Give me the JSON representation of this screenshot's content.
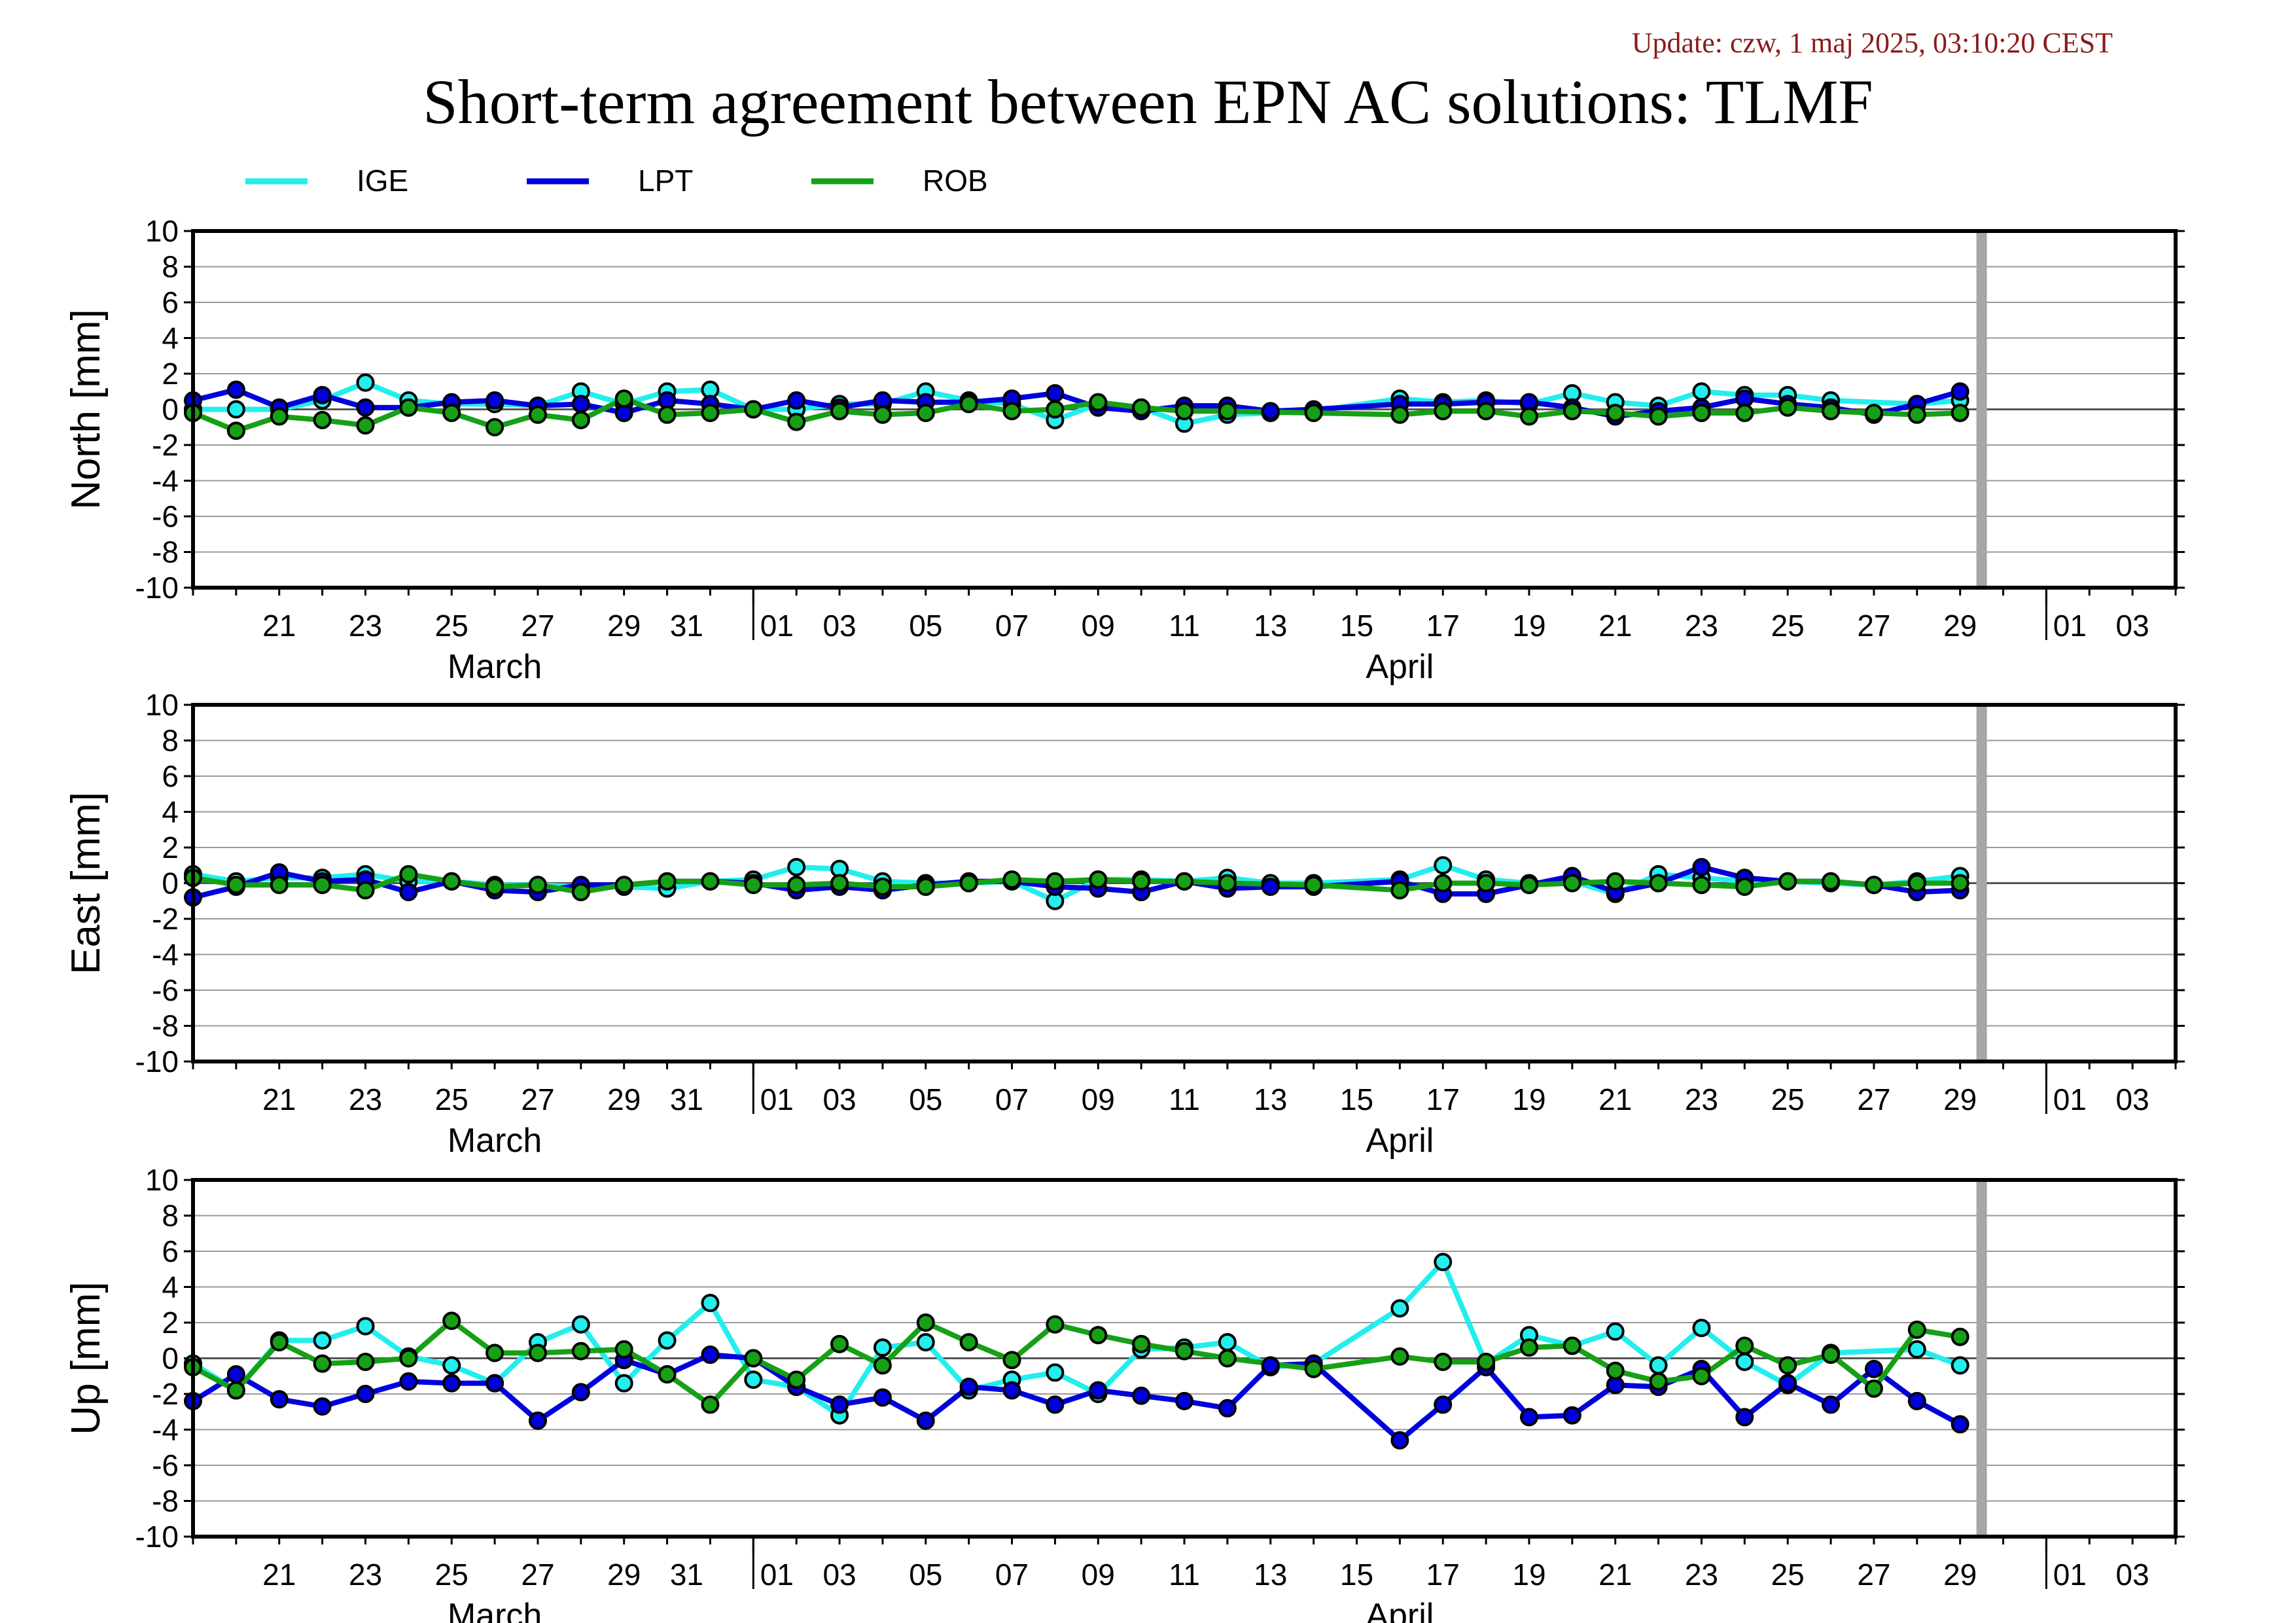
{
  "update": "Update: czw, 1 maj 2025, 03:10:20 CEST",
  "title": "Short-term agreement between EPN AC solutions: TLMF",
  "legend": [
    {
      "label": "IGE",
      "color": "#22eeee"
    },
    {
      "label": "LPT",
      "color": "#0000dd"
    },
    {
      "label": "ROB",
      "color": "#16a016"
    }
  ],
  "chart_data": {
    "type": "line",
    "x_axis": {
      "start_day": "2025-03-19",
      "end_day": "2025-05-04",
      "tick_labels": [
        "21",
        "23",
        "25",
        "27",
        "29",
        "31",
        "01",
        "03",
        "05",
        "07",
        "09",
        "11",
        "13",
        "15",
        "17",
        "19",
        "21",
        "23",
        "25",
        "27",
        "29",
        "01",
        "03"
      ],
      "month_labels": [
        "March",
        "April"
      ]
    },
    "ylim": [
      -10,
      10
    ],
    "yticks": [
      "10",
      "8",
      "6",
      "4",
      "2",
      "0",
      "-2",
      "-4",
      "-6",
      "-8",
      "-10"
    ],
    "grid": true,
    "legend_position": "top",
    "marker_date": "2025-04-29",
    "panels": [
      {
        "ylabel": "North [mm]",
        "series": [
          {
            "name": "IGE",
            "x": [
              "2025-03-19",
              "2025-03-20",
              "2025-03-21",
              "2025-03-22",
              "2025-03-23",
              "2025-03-24",
              "2025-03-25",
              "2025-03-26",
              "2025-03-27",
              "2025-03-28",
              "2025-03-29",
              "2025-03-30",
              "2025-03-31",
              "2025-04-01",
              "2025-04-02",
              "2025-04-03",
              "2025-04-04",
              "2025-04-05",
              "2025-04-06",
              "2025-04-07",
              "2025-04-08",
              "2025-04-09",
              "2025-04-10",
              "2025-04-11",
              "2025-04-12",
              "2025-04-13",
              "2025-04-14",
              "2025-04-16",
              "2025-04-17",
              "2025-04-18",
              "2025-04-19",
              "2025-04-20",
              "2025-04-21",
              "2025-04-22",
              "2025-04-23",
              "2025-04-24",
              "2025-04-25",
              "2025-04-26",
              "2025-04-28",
              "2025-04-29"
            ],
            "y": [
              0,
              0,
              0,
              0.5,
              1.5,
              0.5,
              0.3,
              0.3,
              0.2,
              1.0,
              0.3,
              1.0,
              1.1,
              0,
              0,
              0.3,
              0.3,
              1.0,
              0.5,
              0.3,
              -0.6,
              0.3,
              0.1,
              -0.8,
              -0.3,
              -0.2,
              -0.1,
              0.6,
              0.4,
              0.5,
              0.3,
              0.9,
              0.4,
              0.2,
              1.0,
              0.8,
              0.8,
              0.5,
              0.3,
              0.5
            ]
          },
          {
            "name": "LPT",
            "x": [
              "2025-03-19",
              "2025-03-20",
              "2025-03-21",
              "2025-03-22",
              "2025-03-23",
              "2025-03-24",
              "2025-03-25",
              "2025-03-26",
              "2025-03-27",
              "2025-03-28",
              "2025-03-29",
              "2025-03-30",
              "2025-03-31",
              "2025-04-01",
              "2025-04-02",
              "2025-04-03",
              "2025-04-04",
              "2025-04-05",
              "2025-04-06",
              "2025-04-07",
              "2025-04-08",
              "2025-04-09",
              "2025-04-10",
              "2025-04-11",
              "2025-04-12",
              "2025-04-13",
              "2025-04-14",
              "2025-04-16",
              "2025-04-17",
              "2025-04-18",
              "2025-04-19",
              "2025-04-20",
              "2025-04-21",
              "2025-04-22",
              "2025-04-23",
              "2025-04-24",
              "2025-04-25",
              "2025-04-26",
              "2025-04-27",
              "2025-04-28",
              "2025-04-29"
            ],
            "y": [
              0.5,
              1.1,
              0.1,
              0.8,
              0.1,
              0.1,
              0.4,
              0.5,
              0.2,
              0.3,
              -0.2,
              0.5,
              0.3,
              0,
              0.5,
              0.1,
              0.5,
              0.4,
              0.4,
              0.6,
              0.9,
              0.1,
              -0.1,
              0.2,
              0.2,
              -0.1,
              0,
              0.3,
              0.3,
              0.4,
              0.4,
              0.1,
              -0.4,
              -0.1,
              0.1,
              0.6,
              0.3,
              0.1,
              -0.3,
              0.3,
              1.0
            ]
          },
          {
            "name": "ROB",
            "x": [
              "2025-03-19",
              "2025-03-20",
              "2025-03-21",
              "2025-03-22",
              "2025-03-23",
              "2025-03-24",
              "2025-03-25",
              "2025-03-26",
              "2025-03-27",
              "2025-03-28",
              "2025-03-29",
              "2025-03-30",
              "2025-03-31",
              "2025-04-01",
              "2025-04-02",
              "2025-04-03",
              "2025-04-04",
              "2025-04-05",
              "2025-04-06",
              "2025-04-07",
              "2025-04-08",
              "2025-04-09",
              "2025-04-10",
              "2025-04-11",
              "2025-04-12",
              "2025-04-14",
              "2025-04-16",
              "2025-04-17",
              "2025-04-18",
              "2025-04-19",
              "2025-04-20",
              "2025-04-21",
              "2025-04-22",
              "2025-04-23",
              "2025-04-24",
              "2025-04-25",
              "2025-04-26",
              "2025-04-27",
              "2025-04-28",
              "2025-04-29"
            ],
            "y": [
              -0.2,
              -1.2,
              -0.4,
              -0.6,
              -0.9,
              0.1,
              -0.2,
              -1.0,
              -0.3,
              -0.6,
              0.6,
              -0.3,
              -0.2,
              0,
              -0.7,
              -0.1,
              -0.3,
              -0.2,
              0.3,
              -0.1,
              0,
              0.4,
              0.1,
              -0.1,
              -0.1,
              -0.2,
              -0.3,
              -0.1,
              -0.1,
              -0.4,
              -0.1,
              -0.2,
              -0.4,
              -0.2,
              -0.2,
              0.1,
              -0.1,
              -0.2,
              -0.3,
              -0.2
            ]
          }
        ]
      },
      {
        "ylabel": "East [mm]",
        "series": [
          {
            "name": "IGE",
            "x": [
              "2025-03-19",
              "2025-03-20",
              "2025-03-21",
              "2025-03-22",
              "2025-03-23",
              "2025-03-24",
              "2025-03-25",
              "2025-03-26",
              "2025-03-27",
              "2025-03-28",
              "2025-03-29",
              "2025-03-30",
              "2025-03-31",
              "2025-04-01",
              "2025-04-02",
              "2025-04-03",
              "2025-04-04",
              "2025-04-05",
              "2025-04-06",
              "2025-04-07",
              "2025-04-08",
              "2025-04-09",
              "2025-04-10",
              "2025-04-11",
              "2025-04-12",
              "2025-04-13",
              "2025-04-14",
              "2025-04-16",
              "2025-04-17",
              "2025-04-18",
              "2025-04-19",
              "2025-04-20",
              "2025-04-21",
              "2025-04-22",
              "2025-04-23",
              "2025-04-24",
              "2025-04-25",
              "2025-04-26",
              "2025-04-27",
              "2025-04-28",
              "2025-04-29"
            ],
            "y": [
              0.5,
              0.1,
              0.3,
              0.3,
              0.5,
              0.1,
              0.1,
              -0.1,
              -0.1,
              -0.2,
              -0.2,
              -0.3,
              0.1,
              0.2,
              0.9,
              0.8,
              0.1,
              0,
              0,
              0.1,
              -1.0,
              0.2,
              0.2,
              0.1,
              0.3,
              0,
              0,
              0.2,
              1.0,
              0.2,
              0,
              0.1,
              -0.6,
              0.5,
              0.3,
              0.1,
              0.1,
              0,
              -0.1,
              0.1,
              0.4
            ]
          },
          {
            "name": "LPT",
            "x": [
              "2025-03-19",
              "2025-03-20",
              "2025-03-21",
              "2025-03-22",
              "2025-03-23",
              "2025-03-24",
              "2025-03-25",
              "2025-03-26",
              "2025-03-27",
              "2025-03-28",
              "2025-03-29",
              "2025-03-30",
              "2025-03-31",
              "2025-04-01",
              "2025-04-02",
              "2025-04-03",
              "2025-04-04",
              "2025-04-05",
              "2025-04-06",
              "2025-04-07",
              "2025-04-08",
              "2025-04-09",
              "2025-04-10",
              "2025-04-11",
              "2025-04-12",
              "2025-04-13",
              "2025-04-14",
              "2025-04-16",
              "2025-04-17",
              "2025-04-18",
              "2025-04-19",
              "2025-04-20",
              "2025-04-21",
              "2025-04-22",
              "2025-04-23",
              "2025-04-24",
              "2025-04-25",
              "2025-04-26",
              "2025-04-27",
              "2025-04-28",
              "2025-04-29"
            ],
            "y": [
              -0.8,
              -0.2,
              0.6,
              0.1,
              0.2,
              -0.5,
              0.1,
              -0.4,
              -0.5,
              -0.1,
              -0.1,
              0.1,
              0.1,
              0,
              -0.4,
              -0.2,
              -0.4,
              -0.1,
              0.1,
              0.1,
              -0.2,
              -0.3,
              -0.5,
              0.1,
              -0.3,
              -0.2,
              -0.2,
              0.1,
              -0.6,
              -0.6,
              -0.1,
              0.4,
              -0.5,
              0,
              0.9,
              0.3,
              0.1,
              0.1,
              -0.1,
              -0.5,
              -0.4
            ]
          },
          {
            "name": "ROB",
            "x": [
              "2025-03-19",
              "2025-03-20",
              "2025-03-21",
              "2025-03-22",
              "2025-03-23",
              "2025-03-24",
              "2025-03-25",
              "2025-03-26",
              "2025-03-27",
              "2025-03-28",
              "2025-03-29",
              "2025-03-30",
              "2025-03-31",
              "2025-04-01",
              "2025-04-02",
              "2025-04-03",
              "2025-04-04",
              "2025-04-05",
              "2025-04-06",
              "2025-04-07",
              "2025-04-08",
              "2025-04-09",
              "2025-04-10",
              "2025-04-11",
              "2025-04-12",
              "2025-04-14",
              "2025-04-16",
              "2025-04-17",
              "2025-04-18",
              "2025-04-19",
              "2025-04-20",
              "2025-04-21",
              "2025-04-22",
              "2025-04-23",
              "2025-04-24",
              "2025-04-25",
              "2025-04-26",
              "2025-04-27",
              "2025-04-28",
              "2025-04-29"
            ],
            "y": [
              0.3,
              -0.1,
              -0.1,
              -0.1,
              -0.4,
              0.5,
              0.1,
              -0.2,
              -0.1,
              -0.5,
              -0.1,
              0.1,
              0.1,
              -0.1,
              -0.1,
              0,
              -0.2,
              -0.2,
              0,
              0.2,
              0.1,
              0.2,
              0.1,
              0.1,
              0,
              -0.1,
              -0.4,
              0,
              0,
              -0.1,
              0,
              0.1,
              0,
              -0.1,
              -0.2,
              0.1,
              0.1,
              -0.1,
              0,
              0
            ]
          }
        ]
      },
      {
        "ylabel": "Up [mm]",
        "series": [
          {
            "name": "IGE",
            "x": [
              "2025-03-19",
              "2025-03-20",
              "2025-03-21",
              "2025-03-22",
              "2025-03-23",
              "2025-03-24",
              "2025-03-25",
              "2025-03-26",
              "2025-03-27",
              "2025-03-28",
              "2025-03-29",
              "2025-03-30",
              "2025-03-31",
              "2025-04-01",
              "2025-04-02",
              "2025-04-03",
              "2025-04-04",
              "2025-04-05",
              "2025-04-06",
              "2025-04-07",
              "2025-04-08",
              "2025-04-09",
              "2025-04-10",
              "2025-04-11",
              "2025-04-12",
              "2025-04-13",
              "2025-04-14",
              "2025-04-16",
              "2025-04-17",
              "2025-04-18",
              "2025-04-19",
              "2025-04-20",
              "2025-04-21",
              "2025-04-22",
              "2025-04-23",
              "2025-04-24",
              "2025-04-25",
              "2025-04-26",
              "2025-04-28",
              "2025-04-29"
            ],
            "y": [
              -0.3,
              -1.8,
              1.0,
              1.0,
              1.8,
              0.1,
              -0.4,
              -1.4,
              0.9,
              1.9,
              -1.4,
              1.0,
              3.1,
              -1.2,
              -1.6,
              -3.2,
              0.6,
              0.9,
              -1.8,
              -1.2,
              -0.8,
              -2.0,
              0.5,
              0.6,
              0.9,
              -0.5,
              -0.3,
              2.8,
              5.4,
              -0.3,
              1.3,
              0.7,
              1.5,
              -0.4,
              1.7,
              -0.2,
              -1.5,
              0.3,
              0.5,
              -0.4
            ]
          },
          {
            "name": "LPT",
            "x": [
              "2025-03-19",
              "2025-03-20",
              "2025-03-21",
              "2025-03-22",
              "2025-03-23",
              "2025-03-24",
              "2025-03-25",
              "2025-03-26",
              "2025-03-27",
              "2025-03-28",
              "2025-03-29",
              "2025-03-30",
              "2025-03-31",
              "2025-04-01",
              "2025-04-02",
              "2025-04-03",
              "2025-04-04",
              "2025-04-05",
              "2025-04-06",
              "2025-04-07",
              "2025-04-08",
              "2025-04-09",
              "2025-04-10",
              "2025-04-11",
              "2025-04-12",
              "2025-04-13",
              "2025-04-14",
              "2025-04-16",
              "2025-04-17",
              "2025-04-18",
              "2025-04-19",
              "2025-04-20",
              "2025-04-21",
              "2025-04-22",
              "2025-04-23",
              "2025-04-24",
              "2025-04-25",
              "2025-04-26",
              "2025-04-27",
              "2025-04-28",
              "2025-04-29"
            ],
            "y": [
              -2.4,
              -0.9,
              -2.3,
              -2.7,
              -2.0,
              -1.3,
              -1.4,
              -1.4,
              -3.5,
              -1.9,
              -0.1,
              -0.9,
              0.2,
              0,
              -1.6,
              -2.6,
              -2.2,
              -3.5,
              -1.6,
              -1.8,
              -2.6,
              -1.8,
              -2.1,
              -2.4,
              -2.8,
              -0.4,
              -0.3,
              -4.6,
              -2.6,
              -0.5,
              -3.3,
              -3.2,
              -1.5,
              -1.6,
              -0.6,
              -3.3,
              -1.4,
              -2.6,
              -0.6,
              -2.4,
              -3.7
            ]
          },
          {
            "name": "ROB",
            "x": [
              "2025-03-19",
              "2025-03-20",
              "2025-03-21",
              "2025-03-22",
              "2025-03-23",
              "2025-03-24",
              "2025-03-25",
              "2025-03-26",
              "2025-03-27",
              "2025-03-28",
              "2025-03-29",
              "2025-03-30",
              "2025-03-31",
              "2025-04-01",
              "2025-04-02",
              "2025-04-03",
              "2025-04-04",
              "2025-04-05",
              "2025-04-06",
              "2025-04-07",
              "2025-04-08",
              "2025-04-09",
              "2025-04-10",
              "2025-04-11",
              "2025-04-12",
              "2025-04-14",
              "2025-04-16",
              "2025-04-17",
              "2025-04-18",
              "2025-04-19",
              "2025-04-20",
              "2025-04-21",
              "2025-04-22",
              "2025-04-23",
              "2025-04-24",
              "2025-04-25",
              "2025-04-26",
              "2025-04-27",
              "2025-04-28",
              "2025-04-29"
            ],
            "y": [
              -0.5,
              -1.8,
              0.9,
              -0.3,
              -0.2,
              0,
              2.1,
              0.3,
              0.3,
              0.4,
              0.5,
              -0.9,
              -2.6,
              0,
              -1.2,
              0.8,
              -0.4,
              2.0,
              0.9,
              -0.1,
              1.9,
              1.3,
              0.8,
              0.4,
              0,
              -0.6,
              0.1,
              -0.2,
              -0.2,
              0.6,
              0.7,
              -0.7,
              -1.3,
              -1.0,
              0.7,
              -0.4,
              0.2,
              -1.7,
              1.6,
              1.2
            ]
          }
        ]
      }
    ]
  }
}
